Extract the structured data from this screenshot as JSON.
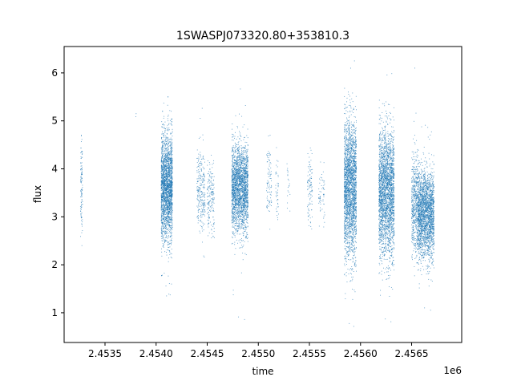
{
  "chart_data": {
    "type": "scatter",
    "title": "1SWASPJ073320.80+353810.3",
    "xlabel": "time",
    "ylabel": "flux",
    "x_offset_label": "1e6",
    "xlim": [
      2453100,
      2456990
    ],
    "ylim": [
      0.38,
      6.55
    ],
    "x_ticks": [
      2.4535,
      2.454,
      2.4545,
      2.455,
      2.4555,
      2.456,
      2.4565
    ],
    "x_tick_labels": [
      "2.4535",
      "2.4540",
      "2.4545",
      "2.4550",
      "2.4555",
      "2.4560",
      "2.4565"
    ],
    "y_ticks": [
      1,
      2,
      3,
      4,
      5,
      6
    ],
    "y_tick_labels": [
      "1",
      "2",
      "3",
      "4",
      "5",
      "6"
    ],
    "grid": false,
    "marker_color": "#1f77b4",
    "series": [
      {
        "clusters": [
          {
            "x_start": 2453260,
            "x_end": 2453280,
            "center": 3.6,
            "spread": 0.5,
            "min": 2.4,
            "max": 4.7,
            "count": 110
          },
          {
            "x_start": 2453800,
            "x_end": 2453810,
            "center": 5.1,
            "spread": 0.05,
            "min": 5.05,
            "max": 5.15,
            "count": 2
          },
          {
            "x_start": 2454050,
            "x_end": 2454160,
            "center": 3.6,
            "spread": 0.55,
            "min": 1.3,
            "max": 5.5,
            "count": 2300
          },
          {
            "x_start": 2454400,
            "x_end": 2454480,
            "center": 3.55,
            "spread": 0.45,
            "min": 1.6,
            "max": 6.1,
            "count": 260
          },
          {
            "x_start": 2454500,
            "x_end": 2454570,
            "center": 3.4,
            "spread": 0.4,
            "min": 1.6,
            "max": 4.7,
            "count": 180
          },
          {
            "x_start": 2454740,
            "x_end": 2454900,
            "center": 3.6,
            "spread": 0.45,
            "min": 0.8,
            "max": 5.8,
            "count": 2300
          },
          {
            "x_start": 2455080,
            "x_end": 2455130,
            "center": 3.7,
            "spread": 0.4,
            "min": 2.7,
            "max": 4.7,
            "count": 90
          },
          {
            "x_start": 2455170,
            "x_end": 2455200,
            "center": 3.6,
            "spread": 0.35,
            "min": 1.3,
            "max": 4.5,
            "count": 40
          },
          {
            "x_start": 2455280,
            "x_end": 2455310,
            "center": 3.6,
            "spread": 0.3,
            "min": 3.0,
            "max": 4.5,
            "count": 20
          },
          {
            "x_start": 2455480,
            "x_end": 2455530,
            "center": 3.55,
            "spread": 0.4,
            "min": 2.7,
            "max": 4.8,
            "count": 100
          },
          {
            "x_start": 2455590,
            "x_end": 2455650,
            "center": 3.5,
            "spread": 0.35,
            "min": 2.6,
            "max": 4.4,
            "count": 60
          },
          {
            "x_start": 2455840,
            "x_end": 2455960,
            "center": 3.6,
            "spread": 0.7,
            "min": 0.65,
            "max": 6.25,
            "count": 2400
          },
          {
            "x_start": 2456180,
            "x_end": 2456330,
            "center": 3.5,
            "spread": 0.65,
            "min": 0.75,
            "max": 6.1,
            "count": 2600
          },
          {
            "x_start": 2456500,
            "x_end": 2456560,
            "center": 3.3,
            "spread": 0.55,
            "min": 0.7,
            "max": 6.25,
            "count": 500
          },
          {
            "x_start": 2456560,
            "x_end": 2456720,
            "center": 3.05,
            "spread": 0.45,
            "min": 1.0,
            "max": 5.5,
            "count": 2300
          }
        ]
      }
    ]
  }
}
